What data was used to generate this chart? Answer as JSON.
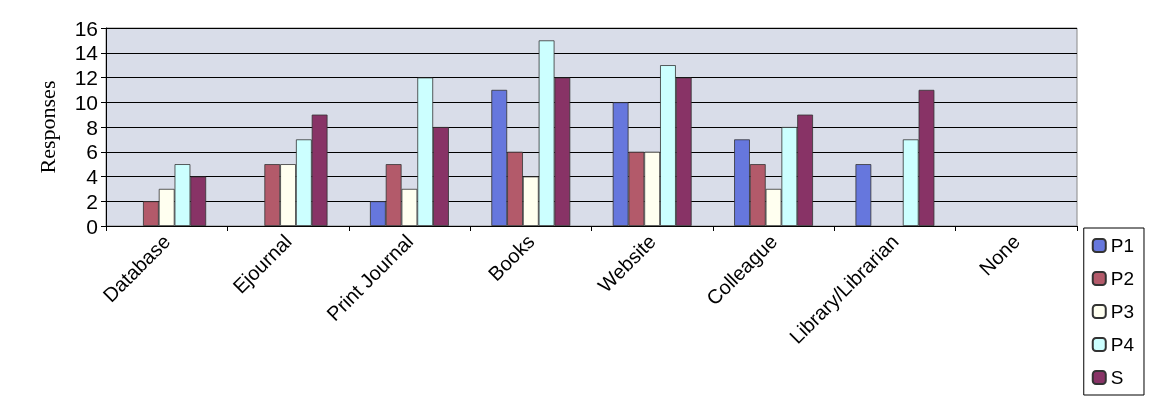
{
  "chart_data": {
    "type": "bar",
    "ylabel": "Responses",
    "categories": [
      "Database",
      "Ejournal",
      "Print Journal",
      "Books",
      "Website",
      "Colleague",
      "Library/Librarian",
      "None"
    ],
    "series": [
      {
        "name": "P1",
        "color": "#6677dd",
        "values": [
          0,
          0,
          2,
          11,
          10,
          7,
          5,
          0
        ]
      },
      {
        "name": "P2",
        "color": "#b35a6a",
        "values": [
          2,
          5,
          5,
          6,
          6,
          5,
          0,
          0
        ]
      },
      {
        "name": "P3",
        "color": "#fffff0",
        "values": [
          3,
          5,
          3,
          4,
          6,
          3,
          0,
          0
        ]
      },
      {
        "name": "P4",
        "color": "#ccffff",
        "values": [
          5,
          7,
          12,
          15,
          13,
          8,
          7,
          0
        ]
      },
      {
        "name": "S",
        "color": "#883366",
        "values": [
          4,
          9,
          8,
          12,
          12,
          9,
          11,
          0
        ]
      }
    ],
    "ylim": [
      0,
      16
    ],
    "yticks": [
      0,
      2,
      4,
      6,
      8,
      10,
      12,
      14,
      16
    ],
    "grid": "y",
    "legend": "right"
  }
}
